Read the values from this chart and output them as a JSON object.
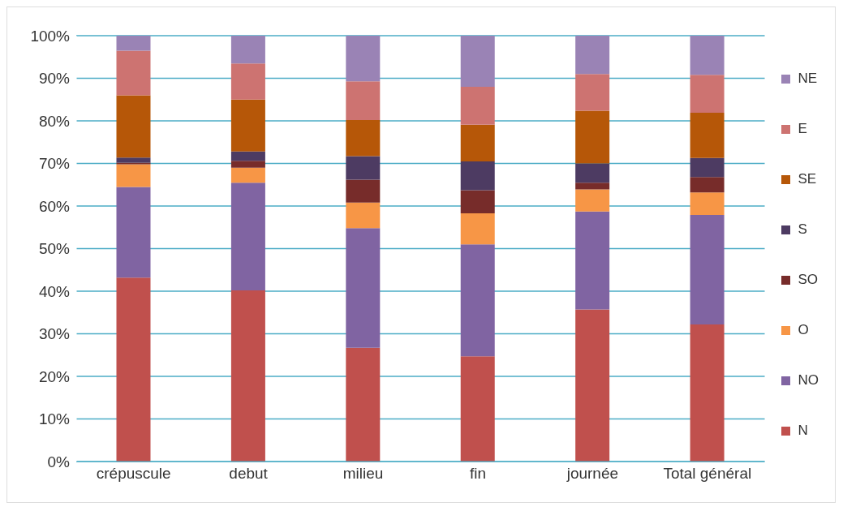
{
  "chart_data": {
    "type": "bar",
    "stacked": true,
    "categories": [
      "crépuscule",
      "debut",
      "milieu",
      "fin",
      "journée",
      "Total général"
    ],
    "series": [
      {
        "name": "N",
        "color": "#c0504d",
        "values": [
          43.2,
          40.2,
          26.7,
          24.7,
          35.7,
          32.2
        ]
      },
      {
        "name": "NO",
        "color": "#8064a2",
        "values": [
          21.3,
          25.3,
          28.1,
          26.3,
          23.0,
          25.7
        ]
      },
      {
        "name": "O",
        "color": "#f79646",
        "values": [
          5.3,
          3.5,
          6.0,
          7.3,
          5.2,
          5.3
        ]
      },
      {
        "name": "SO",
        "color": "#772c2a",
        "values": [
          0.4,
          1.6,
          5.4,
          5.4,
          1.6,
          3.6
        ]
      },
      {
        "name": "S",
        "color": "#4d3b62",
        "values": [
          1.2,
          2.2,
          5.5,
          6.8,
          4.5,
          4.5
        ]
      },
      {
        "name": "SE",
        "color": "#b65708",
        "values": [
          14.6,
          12.2,
          8.5,
          8.6,
          12.4,
          10.6
        ]
      },
      {
        "name": "E",
        "color": "#cd7371",
        "values": [
          10.5,
          8.5,
          9.1,
          8.9,
          8.6,
          8.9
        ]
      },
      {
        "name": "NE",
        "color": "#9a83b5",
        "values": [
          3.5,
          6.5,
          10.7,
          12.0,
          9.0,
          9.2
        ]
      }
    ],
    "ylim": [
      0,
      100
    ],
    "yticks": [
      {
        "value": 0,
        "label": "0%"
      },
      {
        "value": 10,
        "label": "10%"
      },
      {
        "value": 20,
        "label": "20%"
      },
      {
        "value": 30,
        "label": "30%"
      },
      {
        "value": 40,
        "label": "40%"
      },
      {
        "value": 50,
        "label": "50%"
      },
      {
        "value": 60,
        "label": "60%"
      },
      {
        "value": 70,
        "label": "70%"
      },
      {
        "value": 80,
        "label": "80%"
      },
      {
        "value": 90,
        "label": "90%"
      },
      {
        "value": 100,
        "label": "100%"
      }
    ],
    "grid": "y",
    "legend": "right"
  }
}
